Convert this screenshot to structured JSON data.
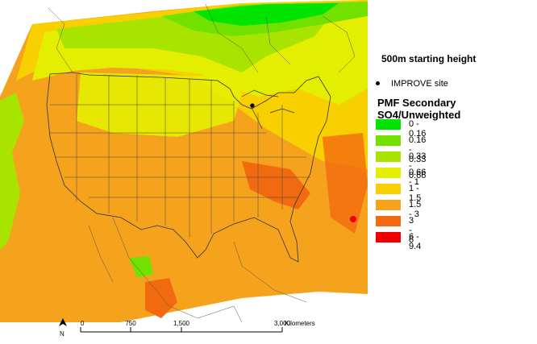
{
  "map": {
    "heading": "500m starting height",
    "site_legend": {
      "symbol": "black-dot",
      "label": "IMPROVE site"
    },
    "legend_title": "PMF Secondary SO4/Unweighted",
    "classes": [
      {
        "label": "0 - 0.16",
        "color": "#00e400"
      },
      {
        "label": "0.16 - 0.33",
        "color": "#72e100"
      },
      {
        "label": "0.33 - 0.66",
        "color": "#a8e400"
      },
      {
        "label": "0.66 - 1",
        "color": "#e4ee00"
      },
      {
        "label": "1 - 1.5",
        "color": "#f8cf00"
      },
      {
        "label": "1.5 - 3",
        "color": "#f5a31c"
      },
      {
        "label": "3 - 6",
        "color": "#f26a10"
      },
      {
        "label": "6 - 9.4",
        "color": "#ee0000"
      }
    ],
    "scale_bar": {
      "north_label": "N",
      "ticks": [
        "0",
        "750",
        "1,500",
        "3,000"
      ],
      "unit": "Kilometers"
    }
  }
}
